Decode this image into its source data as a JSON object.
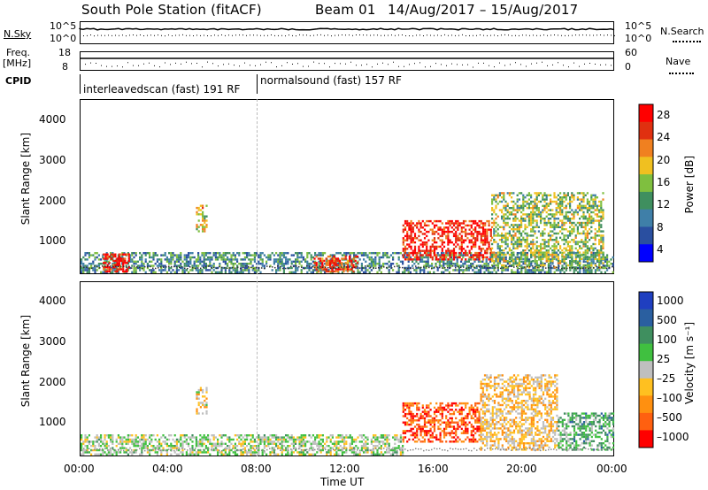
{
  "title": {
    "station": "South Pole Station (fitACF)",
    "beam": "Beam 01",
    "date_range": "14/Aug/2017 – 15/Aug/2017"
  },
  "strip_labels": {
    "nsky": "N.Sky",
    "nsky_top": "10^5",
    "nsky_bottom": "10^0",
    "nsearch": "N.Search",
    "nsearch_top": "10^5",
    "nsearch_bottom": "10^0",
    "freq_line1": "Freq.",
    "freq_line2": "[MHz]",
    "freq_top": "18",
    "freq_bottom": "8",
    "nave": "Nave",
    "nave_top": "60",
    "nave_bottom": "0",
    "cpid": "CPID",
    "cpid_mode1": "interleavedscan (fast) 191 RF",
    "cpid_mode2": "normalsound (fast) 157 RF"
  },
  "axes": {
    "y_label": "Slant Range [km]",
    "x_label": "Time UT",
    "y_ticks": [
      "4000",
      "3000",
      "2000",
      "1000"
    ],
    "x_ticks": [
      "00:00",
      "04:00",
      "08:00",
      "12:00",
      "16:00",
      "20:00",
      "00:00"
    ]
  },
  "colorbars": {
    "power": {
      "label": "Power [dB]",
      "ticks": [
        "28",
        "24",
        "20",
        "16",
        "12",
        "8",
        "4"
      ]
    },
    "velocity": {
      "label": "Velocity [m s⁻¹]",
      "ticks": [
        "1000",
        "500",
        "100",
        "25",
        "–25",
        "–100",
        "–500",
        "–1000"
      ]
    }
  },
  "chart_data": [
    {
      "type": "heatmap",
      "name": "Power",
      "xlabel": "Time UT",
      "ylabel": "Slant Range [km]",
      "xlim": [
        "00:00",
        "24:00"
      ],
      "ylim": [
        180,
        4500
      ],
      "colorbar_label": "Power [dB]",
      "colorbar_range": [
        0,
        30
      ],
      "colors": [
        "#0000ff",
        "#2a4fa0",
        "#3f7fa8",
        "#3f8f5f",
        "#7fbf3f",
        "#f0c020",
        "#f08020",
        "#e03010",
        "#ff0000"
      ],
      "regions": [
        {
          "t_start": 0.0,
          "t_end": 24.0,
          "r_min": 180,
          "r_max": 700,
          "power_db": 10
        },
        {
          "t_start": 1.0,
          "t_end": 2.2,
          "r_min": 200,
          "r_max": 650,
          "power_db": 28
        },
        {
          "t_start": 5.2,
          "t_end": 5.7,
          "r_min": 1200,
          "r_max": 1850,
          "power_db": 18
        },
        {
          "t_start": 10.5,
          "t_end": 12.5,
          "r_min": 200,
          "r_max": 600,
          "power_db": 25
        },
        {
          "t_start": 14.5,
          "t_end": 18.5,
          "r_min": 500,
          "r_max": 1500,
          "power_db": 27
        },
        {
          "t_start": 18.5,
          "t_end": 23.5,
          "r_min": 300,
          "r_max": 2200,
          "power_db": 15
        }
      ]
    },
    {
      "type": "heatmap",
      "name": "Velocity",
      "xlabel": "Time UT",
      "ylabel": "Slant Range [km]",
      "xlim": [
        "00:00",
        "24:00"
      ],
      "ylim": [
        180,
        4500
      ],
      "colorbar_label": "Velocity [m s⁻¹]",
      "colorbar_range": [
        -1000,
        1000
      ],
      "colors": [
        "#ff0000",
        "#ff6010",
        "#ff9010",
        "#ffc020",
        "#bfbfbf",
        "#40c040",
        "#3f8f5f",
        "#2a5fa0",
        "#1f3fc0"
      ],
      "regions": [
        {
          "t_start": 0.0,
          "t_end": 14.5,
          "r_min": 180,
          "r_max": 700,
          "velocity": 80
        },
        {
          "t_start": 5.2,
          "t_end": 5.7,
          "r_min": 1200,
          "r_max": 1850,
          "velocity": -150
        },
        {
          "t_start": 14.5,
          "t_end": 18.0,
          "r_min": 500,
          "r_max": 1500,
          "velocity": -700
        },
        {
          "t_start": 18.0,
          "t_end": 21.5,
          "r_min": 300,
          "r_max": 2200,
          "velocity": -200
        },
        {
          "t_start": 21.5,
          "t_end": 24.0,
          "r_min": 300,
          "r_max": 1200,
          "velocity": 300
        }
      ]
    }
  ]
}
